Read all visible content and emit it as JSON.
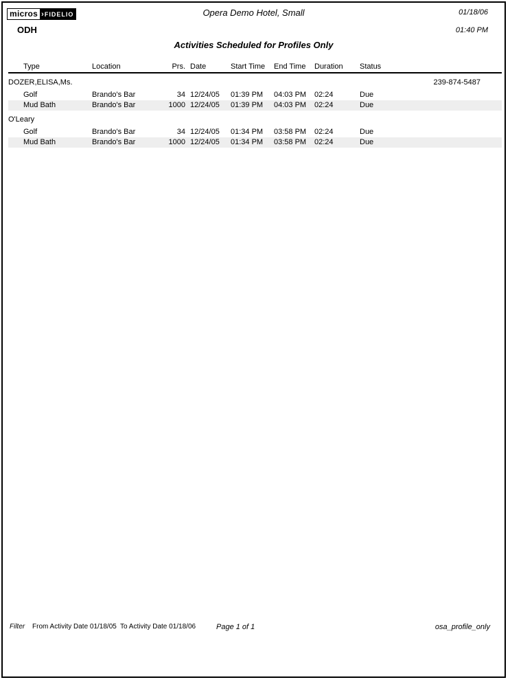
{
  "header": {
    "logo_micros": "micros",
    "logo_separator": "›",
    "logo_fidelio": "FIDELIO",
    "resort_code": "ODH",
    "hotel_name": "Opera Demo Hotel, Small",
    "print_date": "01/18/06",
    "print_time": "01:40 PM",
    "report_title": "Activities Scheduled for Profiles Only"
  },
  "table": {
    "headers": [
      "Type",
      "Location",
      "Prs.",
      "Date",
      "Start Time",
      "End Time",
      "Duration",
      "Status"
    ],
    "groups": [
      {
        "name": "DOZER,ELISA,Ms.",
        "phone": "239-874-5487",
        "rows": [
          {
            "type": "Golf",
            "location": "Brando's Bar",
            "prs": "34",
            "date": "12/24/05",
            "start": "01:39 PM",
            "end": "04:03 PM",
            "duration": "02:24",
            "status": "Due",
            "shaded": false
          },
          {
            "type": "Mud Bath",
            "location": "Brando's Bar",
            "prs": "1000",
            "date": "12/24/05",
            "start": "01:39 PM",
            "end": "04:03 PM",
            "duration": "02:24",
            "status": "Due",
            "shaded": true
          }
        ]
      },
      {
        "name": "O'Leary",
        "phone": "",
        "rows": [
          {
            "type": "Golf",
            "location": "Brando's Bar",
            "prs": "34",
            "date": "12/24/05",
            "start": "01:34 PM",
            "end": "03:58 PM",
            "duration": "02:24",
            "status": "Due",
            "shaded": false
          },
          {
            "type": "Mud Bath",
            "location": "Brando's Bar",
            "prs": "1000",
            "date": "12/24/05",
            "start": "01:34 PM",
            "end": "03:58 PM",
            "duration": "02:24",
            "status": "Due",
            "shaded": true
          }
        ]
      }
    ]
  },
  "footer": {
    "filter_label": "Filter",
    "from_text": "From Activity Date 01/18/05",
    "to_text": "To Activity Date 01/18/06",
    "page_text": "Page 1 of 1",
    "report_name": "osa_profile_only"
  },
  "colors": {
    "text": "#000000",
    "border": "#000000",
    "row_shade": "#eeeeee",
    "logo_bg": "#000000",
    "logo_fg": "#ffffff"
  }
}
